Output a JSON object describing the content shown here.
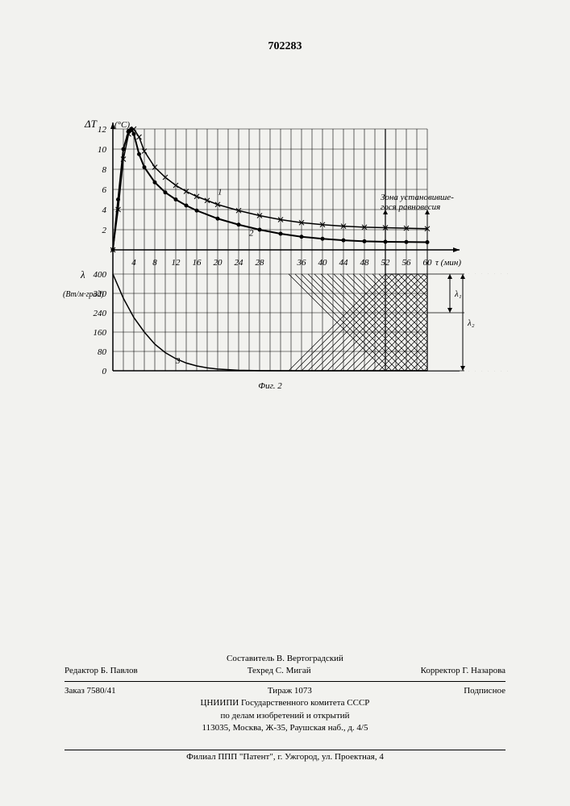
{
  "page_number": "702283",
  "chart": {
    "figure_label": "Фиг. 2",
    "background_color": "#f2f2ef",
    "line_color": "#000000",
    "grid_color": "#000000",
    "text_color": "#000000",
    "top_panel": {
      "y_axis_label_1": "ΔT",
      "y_axis_label_2": "(°C)",
      "ylim": [
        0,
        12
      ],
      "yticks": [
        2,
        4,
        6,
        8,
        10,
        12
      ],
      "series_1": {
        "label": "1",
        "marker": "x",
        "line_width": 1.5,
        "points": [
          {
            "x": 0,
            "y": 0
          },
          {
            "x": 1,
            "y": 4
          },
          {
            "x": 2,
            "y": 9
          },
          {
            "x": 3,
            "y": 11.5
          },
          {
            "x": 4,
            "y": 12
          },
          {
            "x": 5,
            "y": 11.2
          },
          {
            "x": 6,
            "y": 9.8
          },
          {
            "x": 8,
            "y": 8.2
          },
          {
            "x": 10,
            "y": 7.2
          },
          {
            "x": 12,
            "y": 6.4
          },
          {
            "x": 14,
            "y": 5.8
          },
          {
            "x": 16,
            "y": 5.3
          },
          {
            "x": 18,
            "y": 4.9
          },
          {
            "x": 20,
            "y": 4.5
          },
          {
            "x": 24,
            "y": 3.9
          },
          {
            "x": 28,
            "y": 3.4
          },
          {
            "x": 32,
            "y": 3.0
          },
          {
            "x": 36,
            "y": 2.7
          },
          {
            "x": 40,
            "y": 2.5
          },
          {
            "x": 44,
            "y": 2.35
          },
          {
            "x": 48,
            "y": 2.25
          },
          {
            "x": 52,
            "y": 2.2
          },
          {
            "x": 56,
            "y": 2.15
          },
          {
            "x": 60,
            "y": 2.1
          }
        ]
      },
      "series_2": {
        "label": "2",
        "marker": "dot",
        "line_width": 2,
        "points": [
          {
            "x": 0,
            "y": 0
          },
          {
            "x": 1,
            "y": 5
          },
          {
            "x": 2,
            "y": 10
          },
          {
            "x": 3,
            "y": 11.8
          },
          {
            "x": 3.5,
            "y": 12
          },
          {
            "x": 4,
            "y": 11.5
          },
          {
            "x": 5,
            "y": 9.5
          },
          {
            "x": 6,
            "y": 8.2
          },
          {
            "x": 8,
            "y": 6.7
          },
          {
            "x": 10,
            "y": 5.7
          },
          {
            "x": 12,
            "y": 5.0
          },
          {
            "x": 14,
            "y": 4.4
          },
          {
            "x": 16,
            "y": 3.9
          },
          {
            "x": 20,
            "y": 3.1
          },
          {
            "x": 24,
            "y": 2.5
          },
          {
            "x": 28,
            "y": 2.0
          },
          {
            "x": 32,
            "y": 1.6
          },
          {
            "x": 36,
            "y": 1.3
          },
          {
            "x": 40,
            "y": 1.1
          },
          {
            "x": 44,
            "y": 0.95
          },
          {
            "x": 48,
            "y": 0.85
          },
          {
            "x": 52,
            "y": 0.8
          },
          {
            "x": 56,
            "y": 0.78
          },
          {
            "x": 60,
            "y": 0.76
          }
        ]
      }
    },
    "bottom_panel": {
      "y_axis_symbol": "λ",
      "y_axis_unit": "(Вт/м·град)",
      "ylim": [
        0,
        400
      ],
      "yticks": [
        0,
        80,
        160,
        240,
        320,
        400
      ],
      "series_3": {
        "label": "3",
        "line_width": 1.5,
        "points": [
          {
            "x": 0,
            "y": 400
          },
          {
            "x": 2,
            "y": 300
          },
          {
            "x": 4,
            "y": 220
          },
          {
            "x": 6,
            "y": 160
          },
          {
            "x": 8,
            "y": 110
          },
          {
            "x": 10,
            "y": 75
          },
          {
            "x": 12,
            "y": 50
          },
          {
            "x": 14,
            "y": 32
          },
          {
            "x": 16,
            "y": 20
          },
          {
            "x": 18,
            "y": 12
          },
          {
            "x": 20,
            "y": 7
          },
          {
            "x": 24,
            "y": 2
          },
          {
            "x": 28,
            "y": 0.5
          },
          {
            "x": 32,
            "y": 0
          },
          {
            "x": 60,
            "y": 0
          }
        ]
      }
    },
    "x_axis": {
      "label": "τ (мин)",
      "xlim": [
        0,
        60
      ],
      "xticks": [
        4,
        8,
        12,
        16,
        20,
        24,
        28,
        36,
        40,
        44,
        48,
        52,
        56,
        60
      ],
      "grid_lines": [
        2,
        4,
        6,
        8,
        10,
        12,
        14,
        16,
        18,
        20,
        22,
        24,
        26,
        28,
        30,
        32,
        34,
        36,
        38,
        40,
        42,
        44,
        46,
        48,
        50,
        52,
        54,
        56,
        58,
        60
      ]
    },
    "equilibrium_zone": {
      "label_line1": "Зона установивше-",
      "label_line2": "гося равновесия",
      "x_start": 52,
      "x_end": 60
    },
    "lambda_markers": {
      "lambda1_label": "λ₁",
      "lambda2_label": "λ₂"
    },
    "font_sizes": {
      "axis_labels": 13,
      "tick_labels": 11,
      "annotations": 11
    }
  },
  "footer": {
    "composer": "Составитель В. Вертоградский",
    "editor": "Редактор Б. Павлов",
    "techred": "Техред С. Мигай",
    "corrector": "Корректор Г. Назарова",
    "order": "Заказ 7580/41",
    "tirazh": "Тираж 1073",
    "subscription": "Подписное",
    "org_line1": "ЦНИИПИ Государственного комитета СССР",
    "org_line2": "по делам изобретений и открытий",
    "address": "113035, Москва, Ж-35, Раушская наб., д. 4/5",
    "branch": "Филиал ППП \"Патент\", г. Ужгород, ул. Проектная, 4"
  }
}
